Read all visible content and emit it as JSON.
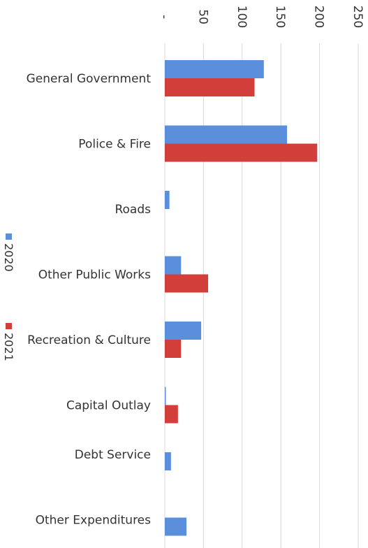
{
  "chart_data": {
    "type": "bar",
    "orientation": "horizontal",
    "categories": [
      "General Government",
      "Police & Fire",
      "Roads",
      "Other Public Works",
      "Recreation & Culture",
      "Capital Outlay",
      "Debt Service",
      "Other Expenditures"
    ],
    "series": [
      {
        "name": "2020",
        "color": "#5b8fdc",
        "values": [
          128,
          158,
          6,
          21,
          47,
          1,
          8,
          28
        ]
      },
      {
        "name": "2021",
        "color": "#d23f3a",
        "values": [
          116,
          197,
          null,
          56,
          21,
          17,
          null,
          null
        ]
      }
    ],
    "xlim": [
      0,
      250
    ],
    "ticks": [
      0,
      50,
      100,
      150,
      200,
      250
    ],
    "tick_labels": [
      "-",
      "50",
      "100",
      "150",
      "200",
      "250"
    ],
    "grid": true,
    "legend_position": "left"
  }
}
